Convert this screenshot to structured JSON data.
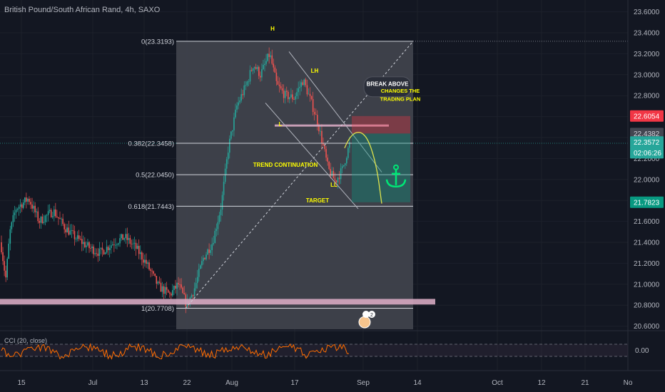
{
  "symbol_title": "British Pound/South African Rand, 4h, SAXO",
  "chart_data": {
    "type": "candlestick",
    "y_axis": {
      "range": [
        20.6,
        23.6
      ],
      "ticks": [
        "23.6000",
        "23.4000",
        "23.2000",
        "23.0000",
        "22.8000",
        "22.6000",
        "22.4000",
        "22.2000",
        "22.0000",
        "21.8000",
        "21.6000",
        "21.4000",
        "21.2000",
        "21.0000",
        "20.8000",
        "20.6000"
      ]
    },
    "x_axis": {
      "labels": [
        "15",
        "Jul",
        "13",
        "22",
        "Aug",
        "17",
        "Sep",
        "14",
        "Oct",
        "12",
        "21",
        "No"
      ]
    },
    "price_badges": [
      {
        "text": "22.6054",
        "value": 22.6054,
        "color": "#f23645",
        "text_color": "#ffffff"
      },
      {
        "text": "22.4382",
        "value": 22.4382,
        "color": "#434651",
        "text_color": "#d1d4dc"
      },
      {
        "text": "22.3572",
        "value": 22.3572,
        "color": "#26a69a",
        "text_color": "#ffffff"
      },
      {
        "text": "02:06:26",
        "value": 22.255,
        "color": "#26a69a",
        "text_color": "#ffffff"
      },
      {
        "text": "21.7823",
        "value": 21.7823,
        "color": "#089981",
        "text_color": "#ffffff"
      }
    ],
    "fibonacci": [
      {
        "label": "0(23.3193)",
        "value": 23.3193
      },
      {
        "label": "0.382(22.3458)",
        "value": 22.3458
      },
      {
        "label": "0.5(22.0450)",
        "value": 22.045
      },
      {
        "label": "0.618(21.7443)",
        "value": 21.7443
      },
      {
        "label": "1(20.7708)",
        "value": 20.7708
      }
    ],
    "pattern_labels": [
      {
        "text": "H",
        "value": 23.42
      },
      {
        "text": "LH",
        "value": 23.02
      },
      {
        "text": "L",
        "value": 22.51
      },
      {
        "text": "LL",
        "value": 21.93
      },
      {
        "text": "TREND CONTINUATION",
        "value": 22.12
      },
      {
        "text": "TARGET",
        "value": 21.78
      }
    ],
    "callout": {
      "text": "BREAK ABOVE",
      "note_line1": "CHANGES THE",
      "note_line2": "TRADING PLAN"
    },
    "cci": {
      "label": "CCI (20, close)",
      "ticks": [
        "0.00"
      ]
    },
    "event_badge": "2",
    "colors": {
      "bg": "#131722",
      "up": "#26a69a",
      "down": "#ef5350",
      "grid": "#1c202b",
      "fib_zone": "#3f424c",
      "support_band": "#d6a9c1",
      "callout_bg": "#2a2e39",
      "annotation_text": "#ffff00",
      "anchor": "#00e676",
      "cci_line": "#ff6d00"
    }
  }
}
